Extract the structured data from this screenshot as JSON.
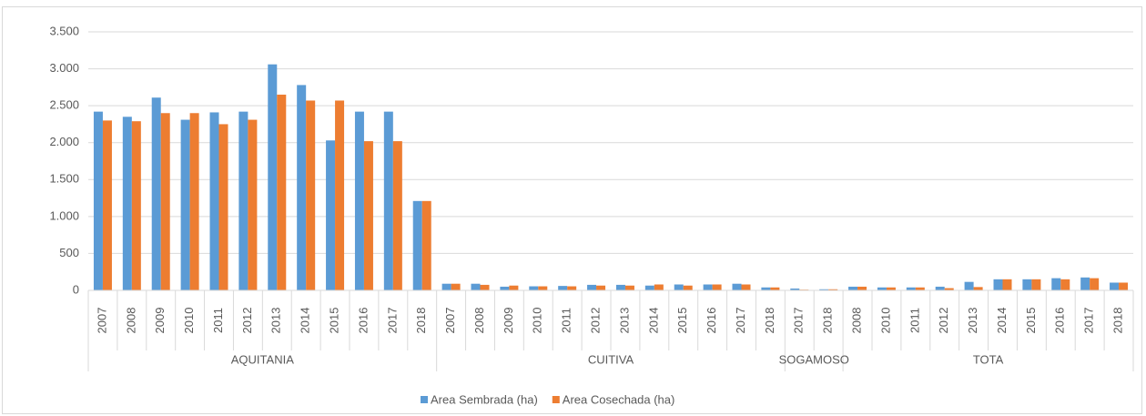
{
  "chart_data": {
    "type": "bar",
    "groups": [
      {
        "name": "AQUITANIA",
        "categories": [
          "2007",
          "2008",
          "2009",
          "2010",
          "2011",
          "2012",
          "2013",
          "2014",
          "2015",
          "2016",
          "2017",
          "2018"
        ]
      },
      {
        "name": "CUITIVA",
        "categories": [
          "2007",
          "2008",
          "2009",
          "2010",
          "2011",
          "2012",
          "2013",
          "2014",
          "2015",
          "2016",
          "2017",
          "2018"
        ]
      },
      {
        "name": "SOGAMOSO",
        "categories": [
          "2017",
          "2018"
        ]
      },
      {
        "name": "TOTA",
        "categories": [
          "2008",
          "2010",
          "2011",
          "2012",
          "2013",
          "2014",
          "2015",
          "2016",
          "2017",
          "2018"
        ]
      }
    ],
    "series": [
      {
        "name": "Area Sembrada (ha)",
        "color": "#5b9bd5",
        "values": [
          2420,
          2350,
          2610,
          2310,
          2410,
          2420,
          3060,
          2780,
          2030,
          2420,
          2420,
          1210,
          90,
          90,
          50,
          55,
          60,
          75,
          75,
          65,
          80,
          80,
          90,
          40,
          25,
          15,
          50,
          40,
          40,
          50,
          115,
          150,
          150,
          165,
          175,
          105
        ]
      },
      {
        "name": "Area Cosechada (ha)",
        "color": "#ed7d31",
        "values": [
          2300,
          2290,
          2400,
          2400,
          2250,
          2310,
          2650,
          2570,
          2570,
          2020,
          2020,
          1210,
          90,
          75,
          65,
          55,
          55,
          65,
          65,
          80,
          65,
          80,
          80,
          40,
          10,
          15,
          50,
          40,
          40,
          30,
          45,
          150,
          150,
          150,
          165,
          105
        ]
      }
    ],
    "ylim": [
      0,
      3500
    ],
    "yticks": [
      0,
      500,
      {
        "value": 1000,
        "label": "1.000"
      },
      {
        "value": 1500,
        "label": "1.500"
      },
      {
        "value": 2000,
        "label": "2.000"
      },
      {
        "value": 2500,
        "label": "2.500"
      },
      {
        "value": 3000,
        "label": "3.000"
      },
      {
        "value": 3500,
        "label": "3.500"
      }
    ],
    "grid": true,
    "legend": "bottom"
  }
}
